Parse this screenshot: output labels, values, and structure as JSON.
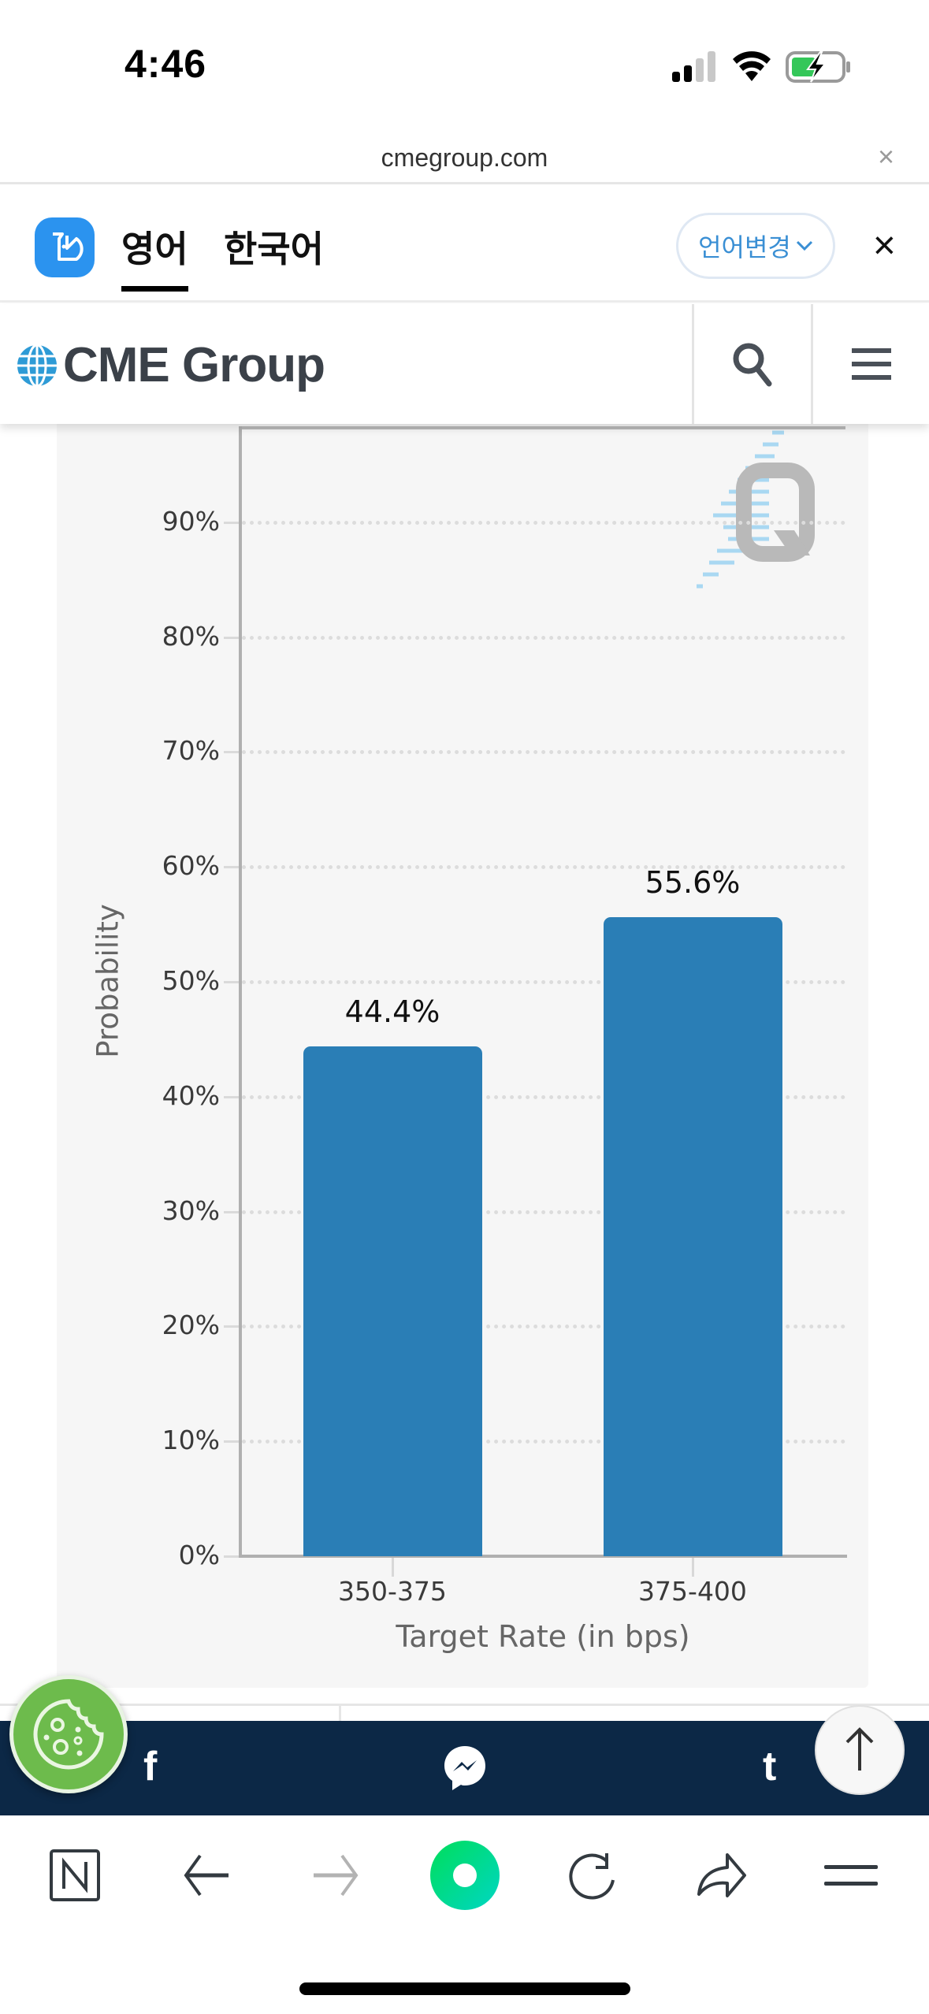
{
  "status_bar": {
    "time": "4:46",
    "signal_bars": 2,
    "wifi": "on",
    "battery": "charging",
    "battery_color": "#34c759"
  },
  "url_bar": {
    "domain": "cmegroup.com",
    "close_icon": "×"
  },
  "translate_bar": {
    "tabs": [
      {
        "label": "영어",
        "active": true
      },
      {
        "label": "한국어",
        "active": false
      }
    ],
    "change_language_label": "언어변경",
    "close_icon": "×"
  },
  "header": {
    "brand": "CME Group",
    "search_icon": "search-icon",
    "menu_icon": "hamburger-menu-icon"
  },
  "chart_data": {
    "type": "bar",
    "title": "",
    "categories": [
      "350-375",
      "375-400"
    ],
    "values": [
      44.4,
      55.6
    ],
    "value_labels": [
      "44.4%",
      "55.6%"
    ],
    "xlabel": "Target Rate (in bps)",
    "ylabel": "Probability",
    "ylim": [
      0,
      98
    ],
    "yticks": [
      "0%",
      "10%",
      "20%",
      "30%",
      "40%",
      "50%",
      "60%",
      "70%",
      "80%",
      "90%"
    ],
    "grid": true,
    "grid_style": "dotted",
    "legend": false,
    "bar_color": "#2a7eb6",
    "background": "#f6f6f6",
    "watermark": "Q"
  },
  "social_bar": {
    "items": [
      {
        "name": "facebook",
        "glyph": "f"
      },
      {
        "name": "messenger",
        "glyph": ""
      },
      {
        "name": "tumblr",
        "glyph": "t"
      }
    ],
    "background": "#0c2846"
  },
  "floating": {
    "cookie_settings": "cookie-icon",
    "back_to_top": "↑"
  },
  "browser_toolbar": {
    "items": [
      "naver-home",
      "back",
      "forward",
      "green-dot",
      "reload",
      "share",
      "menu"
    ],
    "home_glyph": "N"
  }
}
